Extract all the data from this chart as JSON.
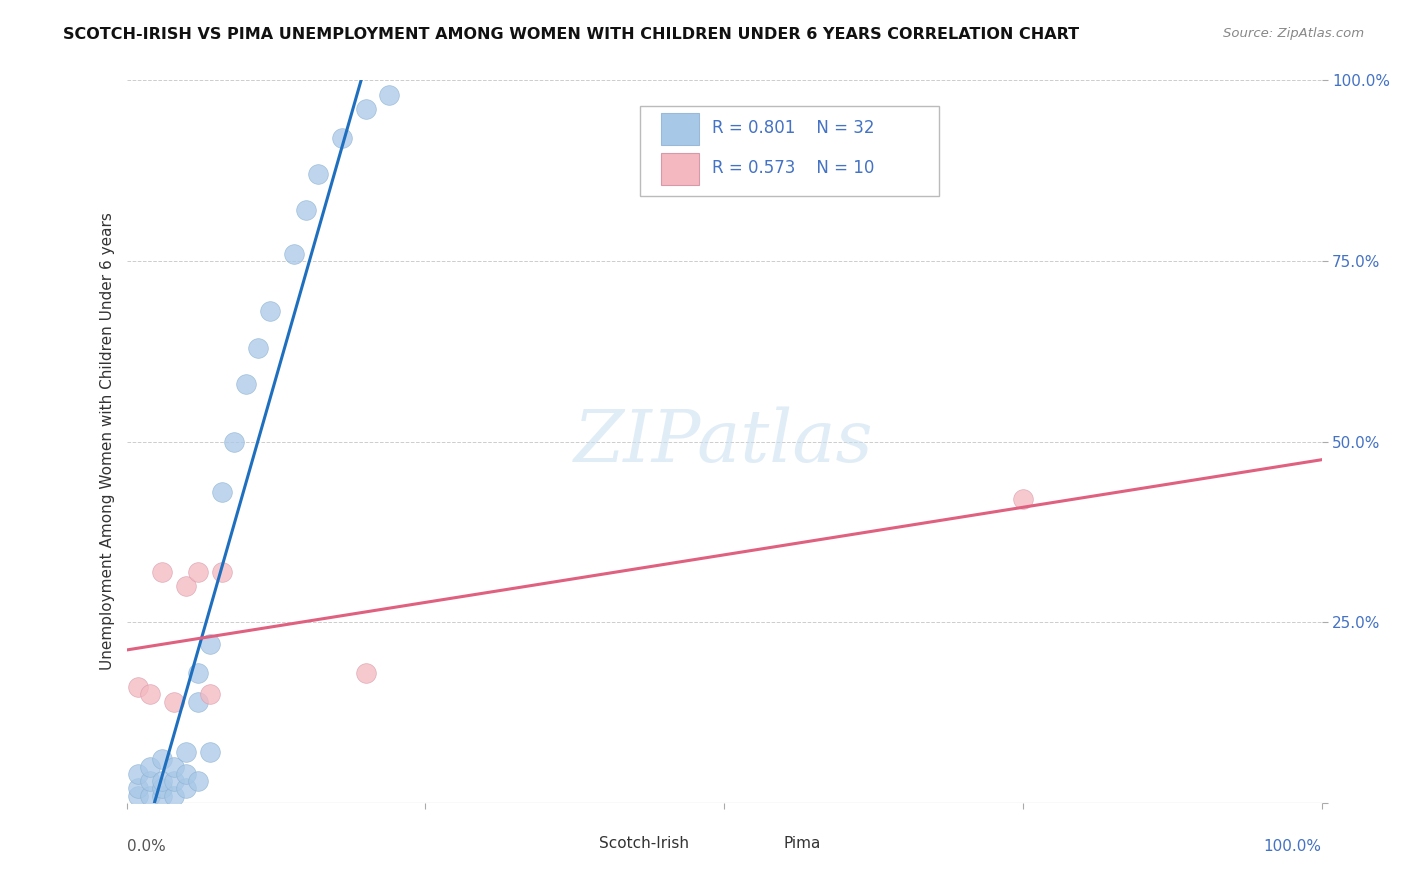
{
  "title": "SCOTCH-IRISH VS PIMA UNEMPLOYMENT AMONG WOMEN WITH CHILDREN UNDER 6 YEARS CORRELATION CHART",
  "source": "Source: ZipAtlas.com",
  "ylabel": "Unemployment Among Women with Children Under 6 years",
  "legend_label1": "Scotch-Irish",
  "legend_label2": "Pima",
  "scotch_irish_color": "#a8c8e8",
  "pima_color": "#f4b8c0",
  "trendline_blue": "#1f6fbf",
  "trendline_pink": "#e06080",
  "watermark_color": "#c8dff0",
  "background_color": "#ffffff",
  "grid_color": "#c8c8c8",
  "legend_text_color": "#4472c4",
  "ytick_color": "#4472c4",
  "si_x": [
    0.01,
    0.01,
    0.01,
    0.02,
    0.02,
    0.02,
    0.03,
    0.03,
    0.03,
    0.03,
    0.04,
    0.04,
    0.04,
    0.05,
    0.05,
    0.05,
    0.06,
    0.06,
    0.06,
    0.07,
    0.07,
    0.08,
    0.09,
    0.1,
    0.11,
    0.12,
    0.14,
    0.15,
    0.16,
    0.18,
    0.2,
    0.22
  ],
  "si_y": [
    0.01,
    0.02,
    0.04,
    0.01,
    0.03,
    0.05,
    0.01,
    0.02,
    0.03,
    0.06,
    0.01,
    0.03,
    0.05,
    0.02,
    0.04,
    0.07,
    0.03,
    0.14,
    0.18,
    0.07,
    0.22,
    0.43,
    0.5,
    0.58,
    0.63,
    0.68,
    0.76,
    0.82,
    0.87,
    0.92,
    0.96,
    0.98
  ],
  "pi_x": [
    0.01,
    0.02,
    0.03,
    0.04,
    0.05,
    0.06,
    0.07,
    0.08,
    0.2,
    0.75
  ],
  "pi_y": [
    0.16,
    0.15,
    0.32,
    0.14,
    0.3,
    0.32,
    0.15,
    0.32,
    0.18,
    0.42
  ],
  "xlim": [
    0.0,
    1.0
  ],
  "ylim": [
    0.0,
    1.0
  ],
  "xticks": [
    0.0,
    0.25,
    0.5,
    0.75,
    1.0
  ],
  "yticks": [
    0.0,
    0.25,
    0.5,
    0.75,
    1.0
  ],
  "xticklabels": [
    "0.0%",
    "",
    "",
    "",
    "100.0%"
  ],
  "yticklabels": [
    "",
    "25.0%",
    "50.0%",
    "75.0%",
    "100.0%"
  ]
}
